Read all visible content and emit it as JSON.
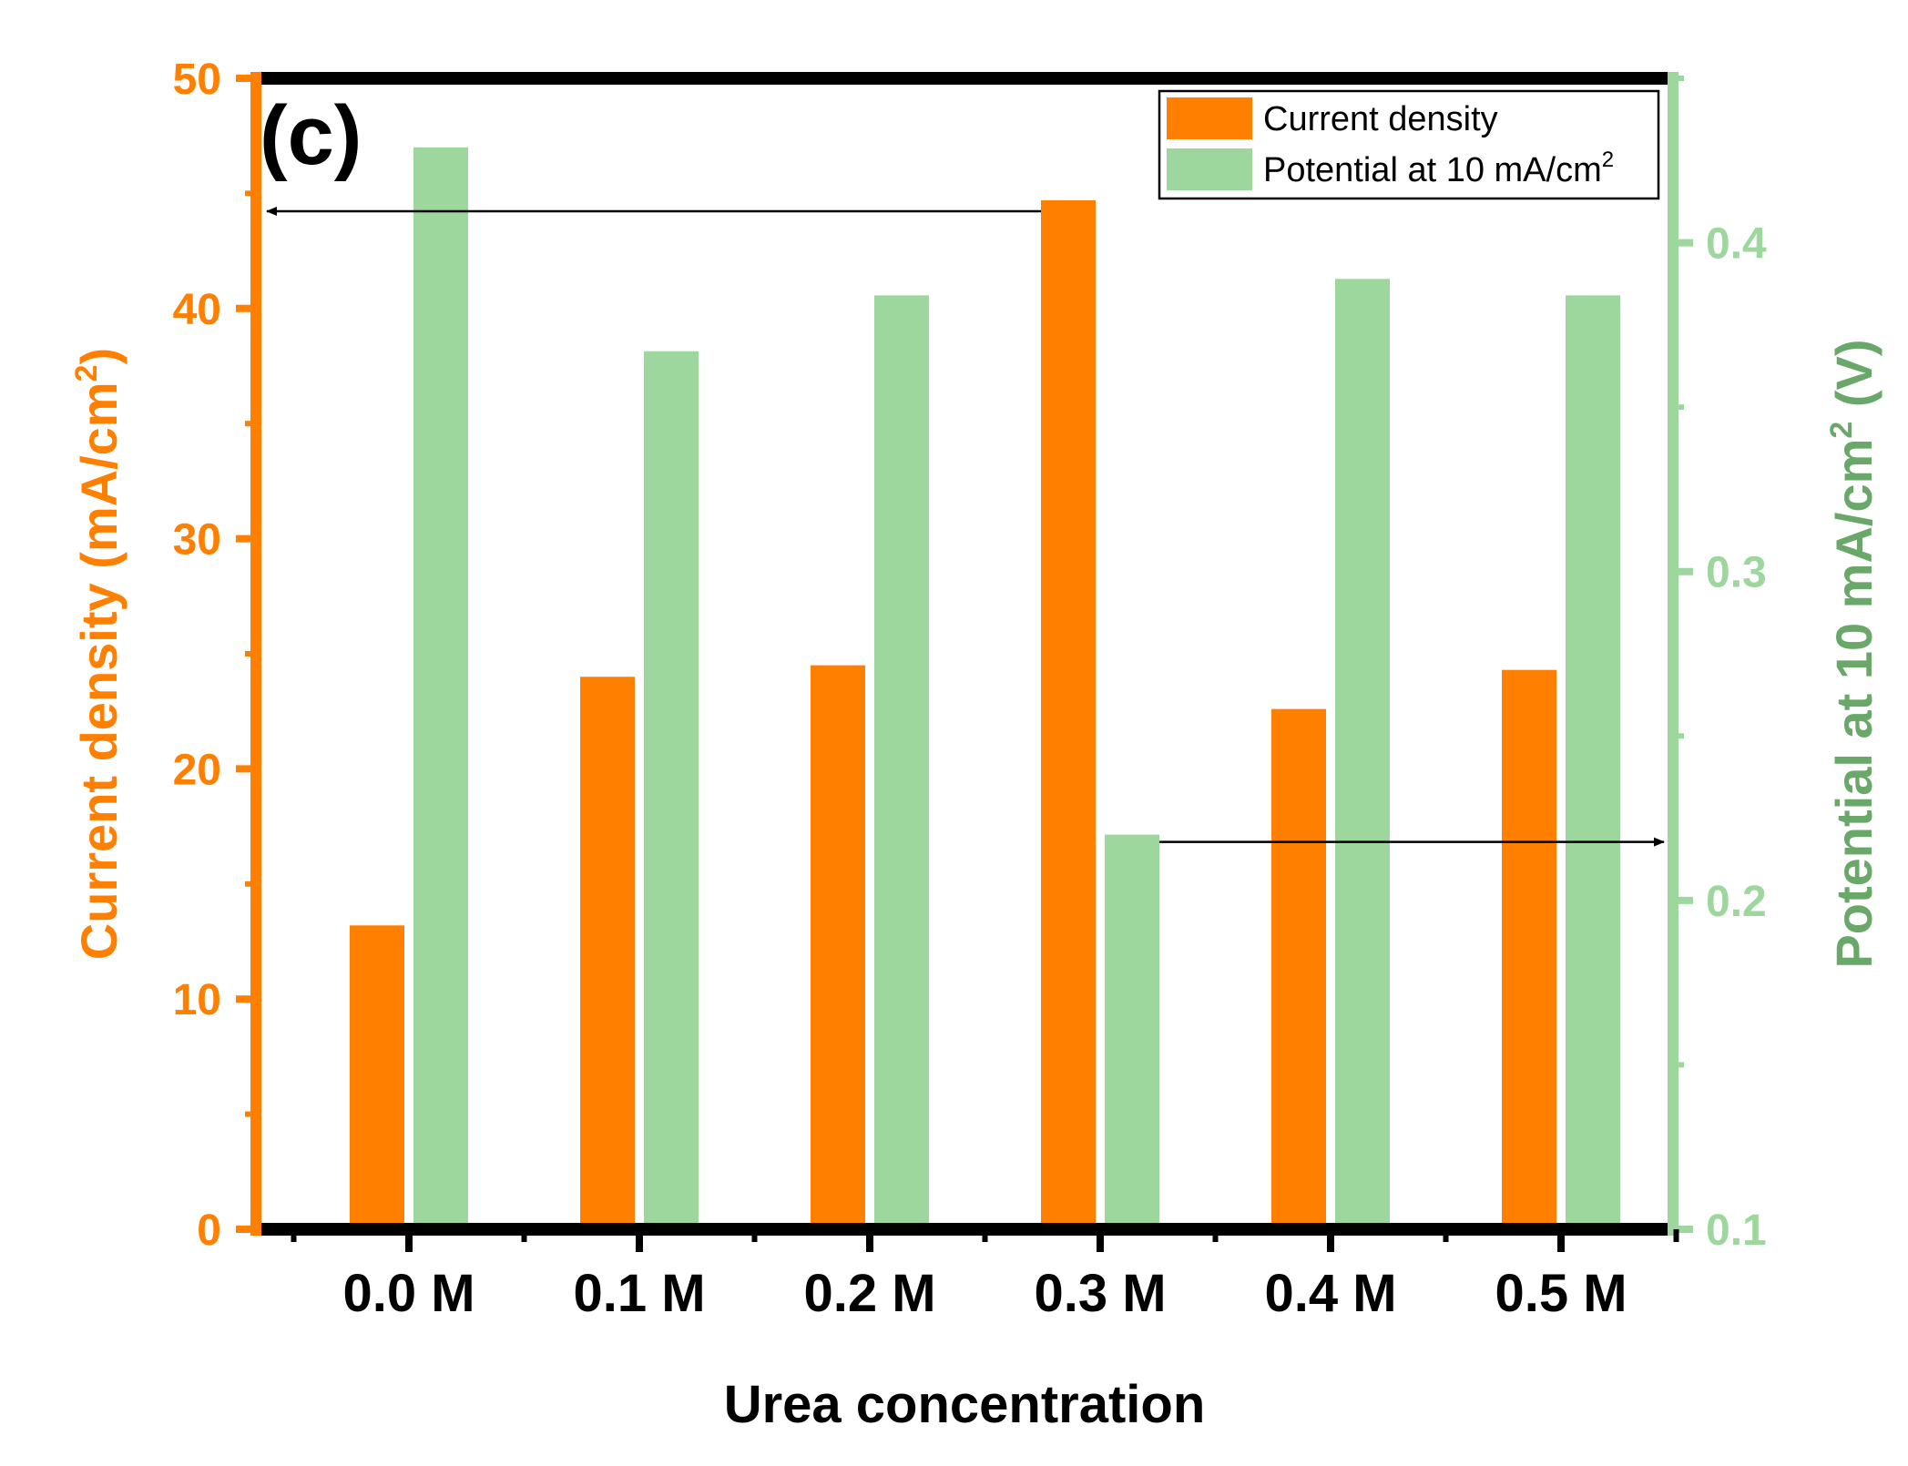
{
  "chart_data": {
    "type": "bar",
    "panel_label": "(c)",
    "xlabel": "Urea concentration",
    "categories": [
      "0.0 M",
      "0.1 M",
      "0.2 M",
      "0.3 M",
      "0.4 M",
      "0.5 M"
    ],
    "left_axis": {
      "label_main": "Current density (mA/cm",
      "label_sup": "2",
      "label_end": ")",
      "ylim": [
        0,
        50
      ],
      "ticks": [
        "0",
        "10",
        "20",
        "30",
        "40",
        "50"
      ],
      "color": "#ff7f00"
    },
    "right_axis": {
      "label_main": "Potential at 10 mA/cm",
      "label_sup": "2",
      "label_end": " (V)",
      "ylim": [
        0.1,
        0.45
      ],
      "ticks": [
        "0.1",
        "0.2",
        "0.3",
        "0.4"
      ],
      "color": "#9dd79d",
      "label_color": "#6aa86a"
    },
    "series": [
      {
        "name": "Current density",
        "axis": "left",
        "color": "#ff7f00",
        "values": [
          13.2,
          24.0,
          24.5,
          44.7,
          22.6,
          24.3
        ]
      },
      {
        "name": "Potential at 10 mA/cm",
        "name_sup": "2",
        "axis": "right",
        "color": "#9dd79d",
        "values": [
          0.429,
          0.367,
          0.384,
          0.22,
          0.389,
          0.384
        ]
      }
    ],
    "legend_position": "top-right",
    "annotations": [
      {
        "type": "arrow",
        "from_series": 0,
        "category_index": 3,
        "direction": "left",
        "points_to": "left-axis"
      },
      {
        "type": "arrow",
        "from_series": 1,
        "category_index": 3,
        "direction": "right",
        "points_to": "right-axis"
      }
    ]
  }
}
